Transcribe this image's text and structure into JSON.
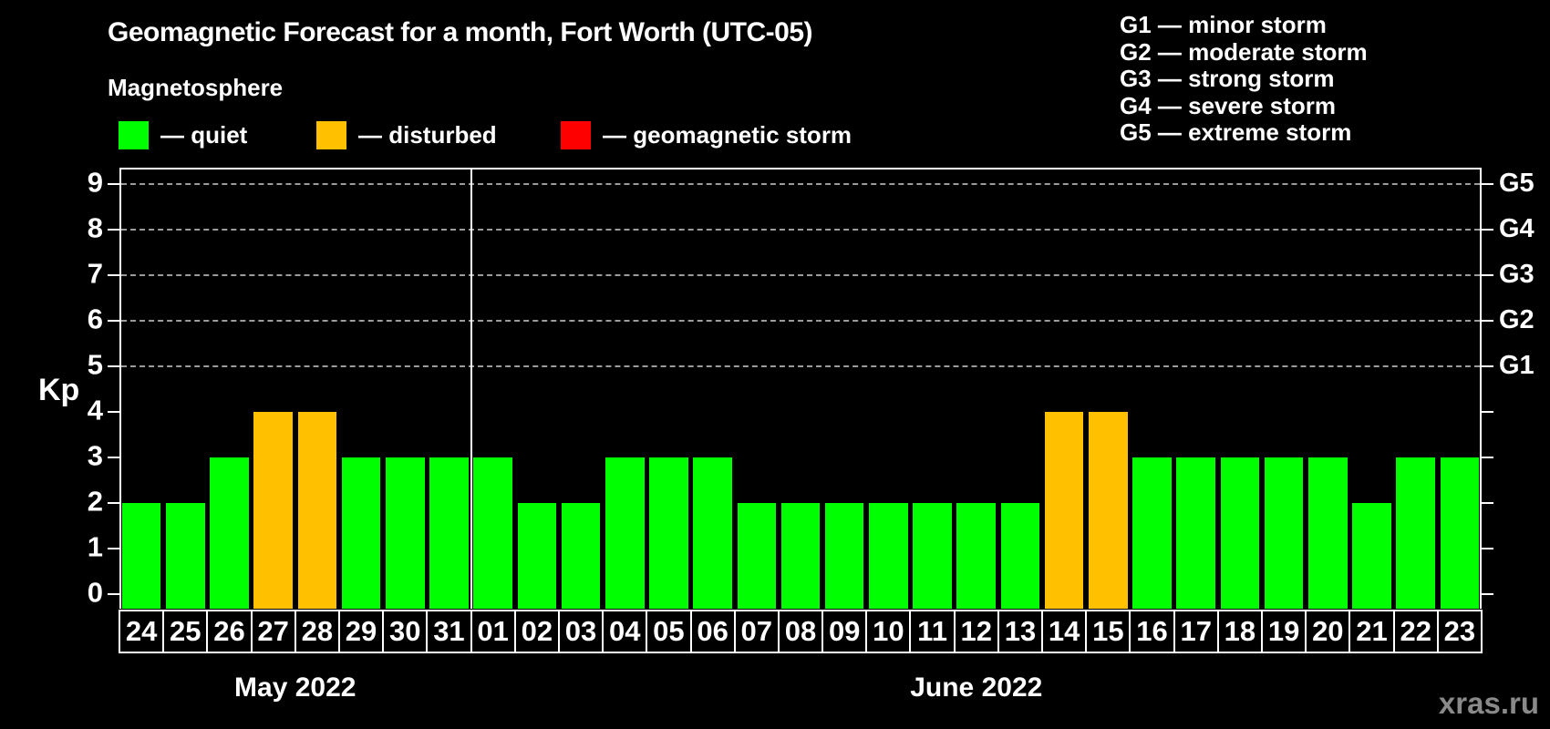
{
  "header": {
    "title": "Geomagnetic Forecast for a month, Fort Worth (UTC-05)",
    "subtitle": "Magnetosphere"
  },
  "legend": {
    "items": [
      {
        "name": "quiet",
        "label": "— quiet",
        "color": "#00ff00"
      },
      {
        "name": "disturbed",
        "label": "— disturbed",
        "color": "#ffc000"
      },
      {
        "name": "storm",
        "label": "— geomagnetic storm",
        "color": "#ff0000"
      }
    ]
  },
  "g_scale_legend": {
    "lines": [
      "G1 — minor storm",
      "G2 — moderate storm",
      "G3 — strong storm",
      "G4 — severe storm",
      "G5 — extreme storm"
    ]
  },
  "watermark": "xras.ru",
  "chart_data": {
    "type": "bar",
    "title": "Geomagnetic Forecast for a month, Fort Worth (UTC-05)",
    "ylabel": "Kp",
    "ylim": [
      0,
      9.6
    ],
    "yticks": [
      0,
      1,
      2,
      3,
      4,
      5,
      6,
      7,
      8,
      9
    ],
    "gridlines_kp": [
      5,
      6,
      7,
      8,
      9
    ],
    "grid": "dashed horizontal lines at Kp 5-9 only",
    "legend_position": "top-left",
    "right_axis_labels": [
      {
        "label": "G1",
        "kp": 5
      },
      {
        "label": "G2",
        "kp": 6
      },
      {
        "label": "G3",
        "kp": 7
      },
      {
        "label": "G4",
        "kp": 8
      },
      {
        "label": "G5",
        "kp": 9
      }
    ],
    "months": [
      {
        "label": "May 2022",
        "days": 8
      },
      {
        "label": "June 2022",
        "days": 23
      }
    ],
    "status_colors": {
      "quiet": "#00ff00",
      "disturbed": "#ffc000",
      "storm": "#ff0000"
    },
    "days": [
      {
        "date": "24",
        "month": "May 2022",
        "kp": 2,
        "status": "quiet"
      },
      {
        "date": "25",
        "month": "May 2022",
        "kp": 2,
        "status": "quiet"
      },
      {
        "date": "26",
        "month": "May 2022",
        "kp": 3,
        "status": "quiet"
      },
      {
        "date": "27",
        "month": "May 2022",
        "kp": 4,
        "status": "disturbed"
      },
      {
        "date": "28",
        "month": "May 2022",
        "kp": 4,
        "status": "disturbed"
      },
      {
        "date": "29",
        "month": "May 2022",
        "kp": 3,
        "status": "quiet"
      },
      {
        "date": "30",
        "month": "May 2022",
        "kp": 3,
        "status": "quiet"
      },
      {
        "date": "31",
        "month": "May 2022",
        "kp": 3,
        "status": "quiet"
      },
      {
        "date": "01",
        "month": "June 2022",
        "kp": 3,
        "status": "quiet"
      },
      {
        "date": "02",
        "month": "June 2022",
        "kp": 2,
        "status": "quiet"
      },
      {
        "date": "03",
        "month": "June 2022",
        "kp": 2,
        "status": "quiet"
      },
      {
        "date": "04",
        "month": "June 2022",
        "kp": 3,
        "status": "quiet"
      },
      {
        "date": "05",
        "month": "June 2022",
        "kp": 3,
        "status": "quiet"
      },
      {
        "date": "06",
        "month": "June 2022",
        "kp": 3,
        "status": "quiet"
      },
      {
        "date": "07",
        "month": "June 2022",
        "kp": 2,
        "status": "quiet"
      },
      {
        "date": "08",
        "month": "June 2022",
        "kp": 2,
        "status": "quiet"
      },
      {
        "date": "09",
        "month": "June 2022",
        "kp": 2,
        "status": "quiet"
      },
      {
        "date": "10",
        "month": "June 2022",
        "kp": 2,
        "status": "quiet"
      },
      {
        "date": "11",
        "month": "June 2022",
        "kp": 2,
        "status": "quiet"
      },
      {
        "date": "12",
        "month": "June 2022",
        "kp": 2,
        "status": "quiet"
      },
      {
        "date": "13",
        "month": "June 2022",
        "kp": 2,
        "status": "quiet"
      },
      {
        "date": "14",
        "month": "June 2022",
        "kp": 4,
        "status": "disturbed"
      },
      {
        "date": "15",
        "month": "June 2022",
        "kp": 4,
        "status": "disturbed"
      },
      {
        "date": "16",
        "month": "June 2022",
        "kp": 3,
        "status": "quiet"
      },
      {
        "date": "17",
        "month": "June 2022",
        "kp": 3,
        "status": "quiet"
      },
      {
        "date": "18",
        "month": "June 2022",
        "kp": 3,
        "status": "quiet"
      },
      {
        "date": "19",
        "month": "June 2022",
        "kp": 3,
        "status": "quiet"
      },
      {
        "date": "20",
        "month": "June 2022",
        "kp": 3,
        "status": "quiet"
      },
      {
        "date": "21",
        "month": "June 2022",
        "kp": 2,
        "status": "quiet"
      },
      {
        "date": "22",
        "month": "June 2022",
        "kp": 3,
        "status": "quiet"
      },
      {
        "date": "23",
        "month": "June 2022",
        "kp": 3,
        "status": "quiet"
      }
    ]
  }
}
